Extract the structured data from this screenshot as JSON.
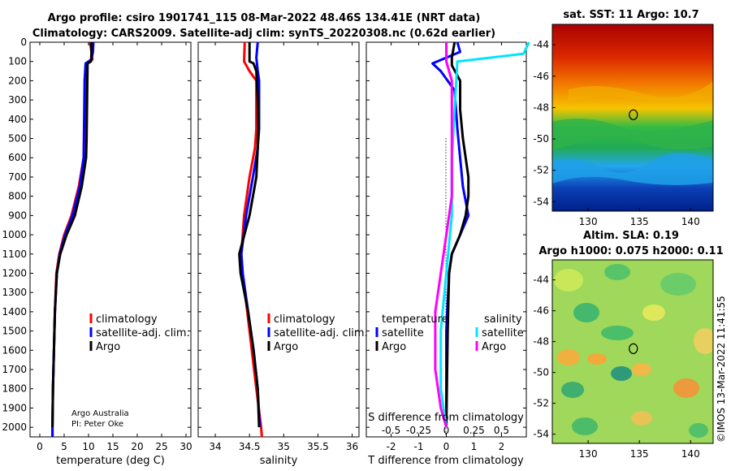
{
  "header": {
    "line1": "Argo profile: csiro 1901741_115 08-Mar-2022 48.46S 134.41E (NRT data)",
    "line2": "Climatology: CARS2009. Satellite-adj clim: synTS_20220308.nc (0.62d earlier)"
  },
  "credit": {
    "line1": "Argo Australia",
    "line2": "PI: Peter Oke"
  },
  "stamp": "©IMOS 13-Mar-2022 11:41:55",
  "colors": {
    "climatology": "#ff0000",
    "satellite": "#0000ff",
    "argo": "#000000",
    "sat_salinity": "#00e5ff",
    "argo_salinity": "#ff00ff"
  },
  "legend_main": [
    "climatology",
    "satellite-adj. clim.",
    "Argo"
  ],
  "legend_diff": {
    "temp_header": "temperature",
    "sal_header": "salinity",
    "items": [
      "satellite",
      "Argo"
    ]
  },
  "maps": {
    "sst_title": "sat. SST: 11 Argo: 10.7",
    "sla_title1": "Altim. SLA: 0.19",
    "sla_title2": "Argo h1000: 0.075 h2000: 0.11",
    "lat_ticks": [
      "-44",
      "-46",
      "-48",
      "-50",
      "-52",
      "-54"
    ],
    "lon_ticks": [
      "130",
      "135",
      "140"
    ],
    "marker": {
      "lon": 134.41,
      "lat": -48.46
    }
  },
  "chart_data": [
    {
      "type": "line",
      "name": "temperature",
      "xlabel": "temperature (deg C)",
      "xlim": [
        -2,
        31
      ],
      "xticks": [
        "0",
        "5",
        "10",
        "15",
        "20",
        "25",
        "30"
      ],
      "ylim": [
        0,
        2050
      ],
      "yticks": [
        "0",
        "100",
        "200",
        "300",
        "400",
        "500",
        "600",
        "700",
        "800",
        "900",
        "1000",
        "1100",
        "1200",
        "1300",
        "1400",
        "1500",
        "1600",
        "1700",
        "1800",
        "1900",
        "2000"
      ],
      "series": [
        {
          "name": "climatology",
          "color": "#ff0000",
          "points": [
            [
              10.3,
              0
            ],
            [
              10.6,
              50
            ],
            [
              10.8,
              90
            ],
            [
              9.6,
              110
            ],
            [
              9.4,
              200
            ],
            [
              9.2,
              400
            ],
            [
              9.0,
              600
            ],
            [
              8.0,
              750
            ],
            [
              6.5,
              900
            ],
            [
              5.0,
              1000
            ],
            [
              4.0,
              1100
            ],
            [
              3.4,
              1200
            ],
            [
              3.1,
              1400
            ],
            [
              2.9,
              1600
            ],
            [
              2.7,
              1800
            ],
            [
              2.6,
              2000
            ],
            [
              2.6,
              2050
            ]
          ]
        },
        {
          "name": "satellite-adj. clim.",
          "color": "#0000ff",
          "points": [
            [
              11.0,
              0
            ],
            [
              10.9,
              50
            ],
            [
              10.6,
              90
            ],
            [
              9.4,
              110
            ],
            [
              9.2,
              200
            ],
            [
              9.1,
              400
            ],
            [
              9.0,
              600
            ],
            [
              8.2,
              750
            ],
            [
              6.7,
              900
            ],
            [
              5.2,
              1000
            ],
            [
              4.1,
              1100
            ],
            [
              3.5,
              1200
            ],
            [
              3.1,
              1400
            ],
            [
              2.9,
              1600
            ],
            [
              2.7,
              1800
            ],
            [
              2.6,
              2000
            ],
            [
              2.6,
              2050
            ]
          ]
        },
        {
          "name": "Argo",
          "color": "#000000",
          "points": [
            [
              10.6,
              0
            ],
            [
              10.6,
              60
            ],
            [
              10.5,
              100
            ],
            [
              9.8,
              110
            ],
            [
              9.7,
              300
            ],
            [
              9.6,
              500
            ],
            [
              9.5,
              600
            ],
            [
              8.6,
              750
            ],
            [
              7.2,
              900
            ],
            [
              5.5,
              1000
            ],
            [
              4.2,
              1100
            ],
            [
              3.5,
              1200
            ],
            [
              3.1,
              1400
            ],
            [
              2.9,
              1600
            ],
            [
              2.7,
              1800
            ],
            [
              2.6,
              2000
            ]
          ]
        }
      ]
    },
    {
      "type": "line",
      "name": "salinity",
      "xlabel": "salinity",
      "xlim": [
        33.75,
        36.1
      ],
      "xticks": [
        "34",
        "34.5",
        "35",
        "35.5",
        "36"
      ],
      "ylim": [
        0,
        2050
      ],
      "series": [
        {
          "name": "climatology",
          "color": "#ff0000",
          "points": [
            [
              34.43,
              0
            ],
            [
              34.42,
              100
            ],
            [
              34.5,
              150
            ],
            [
              34.6,
              200
            ],
            [
              34.6,
              450
            ],
            [
              34.58,
              550
            ],
            [
              34.5,
              700
            ],
            [
              34.42,
              900
            ],
            [
              34.38,
              1100
            ],
            [
              34.4,
              1200
            ],
            [
              34.5,
              1500
            ],
            [
              34.6,
              1800
            ],
            [
              34.67,
              2000
            ],
            [
              34.68,
              2050
            ]
          ]
        },
        {
          "name": "satellite-adj. clim.",
          "color": "#0000ff",
          "points": [
            [
              34.62,
              0
            ],
            [
              34.6,
              80
            ],
            [
              34.62,
              150
            ],
            [
              34.64,
              200
            ],
            [
              34.64,
              450
            ],
            [
              34.62,
              550
            ],
            [
              34.55,
              700
            ],
            [
              34.45,
              900
            ],
            [
              34.38,
              1100
            ],
            [
              34.4,
              1200
            ],
            [
              34.48,
              1400
            ],
            [
              34.56,
              1600
            ],
            [
              34.62,
              1800
            ],
            [
              34.65,
              2000
            ]
          ]
        },
        {
          "name": "Argo",
          "color": "#000000",
          "points": [
            [
              34.5,
              0
            ],
            [
              34.5,
              100
            ],
            [
              34.56,
              110
            ],
            [
              34.6,
              150
            ],
            [
              34.62,
              300
            ],
            [
              34.63,
              450
            ],
            [
              34.62,
              550
            ],
            [
              34.6,
              700
            ],
            [
              34.5,
              900
            ],
            [
              34.35,
              1100
            ],
            [
              34.37,
              1200
            ],
            [
              34.48,
              1400
            ],
            [
              34.56,
              1600
            ],
            [
              34.62,
              1800
            ],
            [
              34.64,
              2000
            ]
          ]
        }
      ]
    },
    {
      "type": "line",
      "name": "difference",
      "xlabel": "T difference from climatology",
      "xlabel_top": "S difference from climatology",
      "xlim": [
        -2.9,
        2.9
      ],
      "xticks": [
        "-2",
        "-1",
        "0",
        "1",
        "2"
      ],
      "xticks_top": [
        "-0.5",
        "-0.25",
        "0",
        "0.25",
        "0.5"
      ],
      "ylim": [
        0,
        2050
      ],
      "series": [
        {
          "name": "temperature satellite",
          "color": "#0000ff",
          "points": [
            [
              0.4,
              0
            ],
            [
              0.5,
              50
            ],
            [
              -0.5,
              110
            ],
            [
              -0.2,
              150
            ],
            [
              0.3,
              250
            ],
            [
              0.4,
              450
            ],
            [
              0.5,
              600
            ],
            [
              0.6,
              750
            ],
            [
              0.8,
              900
            ],
            [
              0.5,
              1000
            ],
            [
              0.2,
              1100
            ],
            [
              0.1,
              1200
            ],
            [
              0.0,
              1500
            ],
            [
              0.0,
              2000
            ]
          ]
        },
        {
          "name": "temperature Argo",
          "color": "#000000",
          "points": [
            [
              0.3,
              0
            ],
            [
              0.2,
              80
            ],
            [
              0.2,
              120
            ],
            [
              0.5,
              200
            ],
            [
              0.5,
              350
            ],
            [
              0.6,
              500
            ],
            [
              0.7,
              600
            ],
            [
              0.8,
              700
            ],
            [
              0.8,
              800
            ],
            [
              0.7,
              900
            ],
            [
              0.5,
              1000
            ],
            [
              0.2,
              1100
            ],
            [
              0.1,
              1200
            ],
            [
              0.05,
              1500
            ],
            [
              0.0,
              2000
            ]
          ]
        },
        {
          "name": "salinity satellite",
          "color": "#00e5ff",
          "points": [
            [
              0.75,
              0
            ],
            [
              0.7,
              60
            ],
            [
              0.1,
              100
            ],
            [
              0.08,
              300
            ],
            [
              0.05,
              600
            ],
            [
              0.05,
              900
            ],
            [
              0.0,
              1200
            ],
            [
              -0.05,
              1500
            ],
            [
              -0.05,
              1800
            ],
            [
              0.0,
              2000
            ]
          ]
        },
        {
          "name": "salinity Argo",
          "color": "#ff00ff",
          "points": [
            [
              0.0,
              0
            ],
            [
              0.0,
              100
            ],
            [
              0.05,
              200
            ],
            [
              0.05,
              500
            ],
            [
              0.05,
              800
            ],
            [
              0.0,
              1000
            ],
            [
              -0.05,
              1200
            ],
            [
              -0.1,
              1400
            ],
            [
              -0.1,
              1700
            ],
            [
              -0.05,
              1900
            ],
            [
              0.0,
              2000
            ]
          ]
        }
      ]
    }
  ]
}
